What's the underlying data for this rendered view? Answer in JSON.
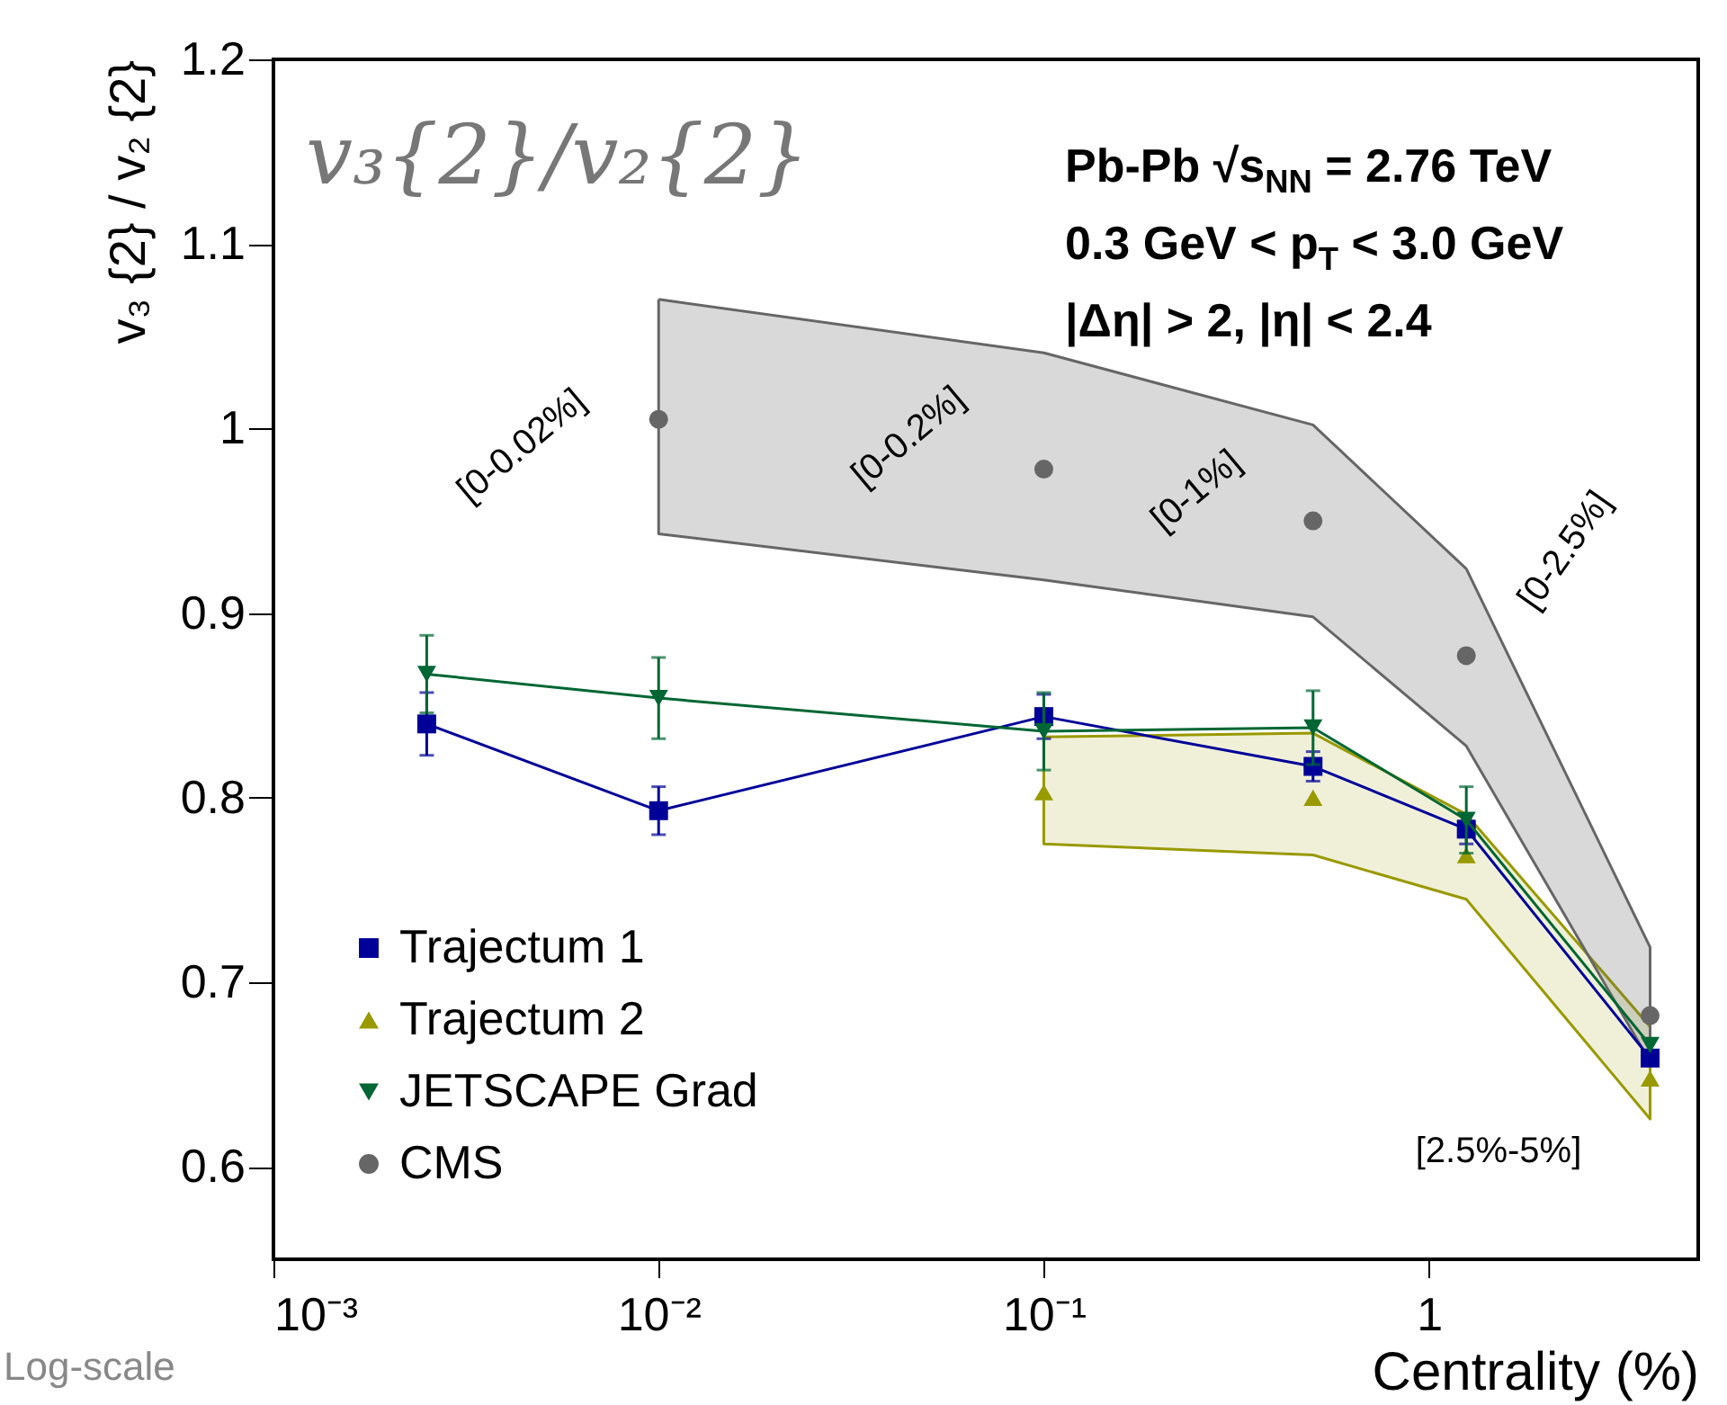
{
  "chart_data": {
    "type": "line",
    "xlabel": "Centrality (%)",
    "ylabel": "v₃ {2} / v₂ {2}",
    "x": [
      0.0025,
      0.01,
      0.1,
      0.5,
      1.25,
      3.75
    ],
    "log": "x",
    "xlim": [
      0.001,
      5
    ],
    "xticks": [
      {
        "value": 0.001,
        "label": "10⁻³"
      },
      {
        "value": 0.01,
        "label": "10⁻²"
      },
      {
        "value": 0.1,
        "label": "10⁻¹"
      },
      1
    ],
    "ylim": [
      0.55,
      1.2
    ],
    "yticks": [
      0.6,
      0.7,
      0.8,
      0.9,
      1,
      1.1,
      1.2
    ],
    "grid": false,
    "legend": "bottom left",
    "series": [
      {
        "name": "Trajectum 1",
        "marker": "square",
        "color": "#000099",
        "values": [
          0.84,
          0.793,
          0.844,
          0.817,
          0.783,
          0.659
        ],
        "errors": [
          0.017,
          0.013,
          0.012,
          0.008,
          0.008,
          null
        ]
      },
      {
        "name": "Trajectum 2",
        "type": "scatter",
        "marker": "triangle",
        "color": "#999900",
        "values": [
          null,
          null,
          0.803,
          0.8,
          0.769,
          0.648
        ],
        "lower": [
          null,
          null,
          0.775,
          0.769,
          0.745,
          0.626
        ],
        "upper": [
          null,
          null,
          0.833,
          0.835,
          0.791,
          0.676
        ]
      },
      {
        "name": "JETSCAPE Grad",
        "marker": "triangle-down",
        "color": "#006633",
        "values": [
          0.867,
          0.854,
          0.836,
          0.838,
          0.788,
          0.666
        ],
        "errors": [
          0.021,
          0.022,
          0.021,
          0.02,
          0.018,
          null
        ]
      },
      {
        "name": "CMS",
        "type": "scatter",
        "marker": "circle",
        "color": "#666666",
        "values": [
          null,
          1.005,
          0.978,
          0.95,
          0.877,
          0.682
        ],
        "lower": [
          null,
          0.943,
          0.918,
          0.898,
          0.828,
          0.657
        ],
        "upper": [
          null,
          1.07,
          1.041,
          1.002,
          0.924,
          0.719
        ]
      }
    ],
    "annotations": [
      "[0-0.02%]",
      "[0-0.2%]",
      "[0-1%]",
      "[0-2.5%]",
      "[2.5%-5%]",
      "v₃{2}/v₂{2}",
      "Pb-Pb √s$_{NN}$ = 2.76 TeV",
      "0.3 GeV < p$_{T}$ < 3.0 GeV",
      "|Δη| > 2, |η| < 2.4",
      "Log-scale"
    ]
  }
}
